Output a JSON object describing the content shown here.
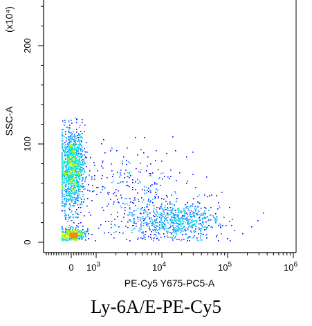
{
  "chart_data": {
    "type": "scatter",
    "style": "flow-cytometry density dot plot",
    "xlabel": "PE-Cy5 Y675-PC5-A",
    "ylabel": "SSC-A",
    "y_unit": "(x10⁴)",
    "caption": "Ly-6A/E-PE-Cy5",
    "x_scale": "biexponential (linear near 0, log above 10^3)",
    "x_ticks": [
      {
        "value": 0,
        "base": "0",
        "exp": ""
      },
      {
        "value": 1000,
        "base": "10",
        "exp": "3"
      },
      {
        "value": 10000,
        "base": "10",
        "exp": "4"
      },
      {
        "value": 100000,
        "base": "10",
        "exp": "5"
      },
      {
        "value": 1000000,
        "base": "10",
        "exp": "6"
      }
    ],
    "y_ticks": [
      {
        "value": 0,
        "label": "0"
      },
      {
        "value": 100,
        "label": "100"
      },
      {
        "value": 200,
        "label": "200"
      }
    ],
    "ylim": [
      0,
      250
    ],
    "density_colors": [
      "#0000ff",
      "#00a0ff",
      "#00e0d0",
      "#a0f000",
      "#ffff00",
      "#ff8000"
    ],
    "populations": [
      {
        "name": "",
        "x_center": 0,
        "x_spread": 250,
        "y_center": 75,
        "y_spread": 22,
        "count": 1300
      },
      {
        "name": "",
        "x_center": 0,
        "x_spread": 260,
        "y_center": 8,
        "y_spread": 3,
        "count": 500
      },
      {
        "name": "",
        "x_log_center": 4.2,
        "x_log_spread": 0.35,
        "y_center": 22,
        "y_spread": 10,
        "count": 700
      },
      {
        "name": "",
        "x_log_center": 3.6,
        "x_log_spread": 0.45,
        "y_center": 50,
        "y_spread": 25,
        "count": 350
      }
    ]
  }
}
